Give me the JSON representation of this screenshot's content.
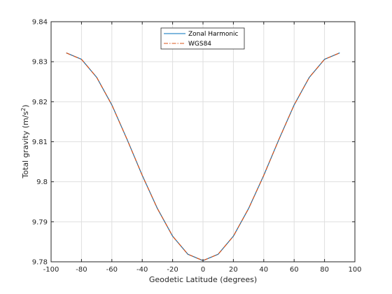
{
  "chart_data": {
    "type": "line",
    "title": "",
    "xlabel": "Geodetic Latitude (degrees)",
    "ylabel_main": "Total gravity (m/s",
    "ylabel_sup": "2",
    "ylabel_end": ")",
    "xlim": [
      -100,
      100
    ],
    "ylim": [
      9.78,
      9.84
    ],
    "xticks": [
      -100,
      -80,
      -60,
      -40,
      -20,
      0,
      20,
      40,
      60,
      80,
      100
    ],
    "xtick_labels": [
      "-100",
      "-80",
      "-60",
      "-40",
      "-20",
      "0",
      "20",
      "40",
      "60",
      "80",
      "100"
    ],
    "yticks": [
      9.78,
      9.79,
      9.8,
      9.81,
      9.82,
      9.83,
      9.84
    ],
    "ytick_labels": [
      "9.78",
      "9.79",
      "9.8",
      "9.81",
      "9.82",
      "9.83",
      "9.84"
    ],
    "grid": true,
    "legend_position": "top-center",
    "series": [
      {
        "name": "Zonal Harmonic",
        "color": "#0072BD",
        "style": "solid",
        "x": [
          -90,
          -80,
          -70,
          -60,
          -50,
          -40,
          -30,
          -20,
          -10,
          0,
          10,
          20,
          30,
          40,
          50,
          60,
          70,
          80,
          90
        ],
        "values": [
          9.8322,
          9.8306,
          9.8261,
          9.8192,
          9.8106,
          9.8016,
          9.7933,
          9.7864,
          9.7819,
          9.7803,
          9.7819,
          9.7864,
          9.7933,
          9.8016,
          9.8106,
          9.8192,
          9.8261,
          9.8306,
          9.8322
        ]
      },
      {
        "name": "WGS84",
        "color": "#D95319",
        "style": "dashdot",
        "x": [
          -90,
          -80,
          -70,
          -60,
          -50,
          -40,
          -30,
          -20,
          -10,
          0,
          10,
          20,
          30,
          40,
          50,
          60,
          70,
          80,
          90
        ],
        "values": [
          9.8322,
          9.8306,
          9.8261,
          9.8192,
          9.8106,
          9.8016,
          9.7933,
          9.7864,
          9.7819,
          9.7803,
          9.7819,
          9.7864,
          9.7933,
          9.8016,
          9.8106,
          9.8192,
          9.8261,
          9.8306,
          9.8322
        ]
      }
    ]
  }
}
